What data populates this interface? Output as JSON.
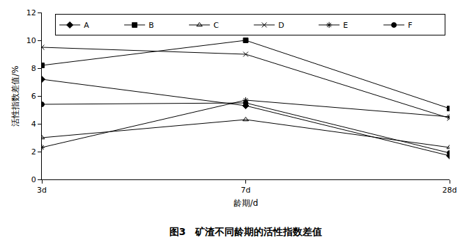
{
  "chart_data": {
    "type": "line",
    "title": "图3　矿渣不同龄期的活性指数差值",
    "x_label": "龄期/d",
    "y_label": "活性指数差值/%",
    "categories": [
      "3d",
      "7d",
      "28d"
    ],
    "series": [
      {
        "name": "A",
        "color": "#000000",
        "marker": "diamond",
        "values": [
          7.2,
          5.3,
          1.7
        ]
      },
      {
        "name": "B",
        "color": "#000000",
        "marker": "square",
        "values": [
          8.2,
          10.0,
          5.1
        ]
      },
      {
        "name": "C",
        "color": "#000000",
        "marker": "triangle-up-open",
        "values": [
          3.0,
          4.3,
          2.3
        ]
      },
      {
        "name": "D",
        "color": "#000000",
        "marker": "x-thin-open",
        "values": [
          9.5,
          9.0,
          4.4
        ]
      },
      {
        "name": "E",
        "color": "#000000",
        "marker": "asterisk-open",
        "values": [
          2.3,
          5.7,
          4.5
        ]
      },
      {
        "name": "F",
        "color": "#000000",
        "marker": "circle",
        "values": [
          5.4,
          5.5,
          1.9
        ]
      }
    ],
    "ylim": [
      0,
      12
    ],
    "yticks": [
      0,
      2,
      4,
      6,
      8,
      10,
      12
    ],
    "grid": false,
    "legend": "upper right"
  }
}
